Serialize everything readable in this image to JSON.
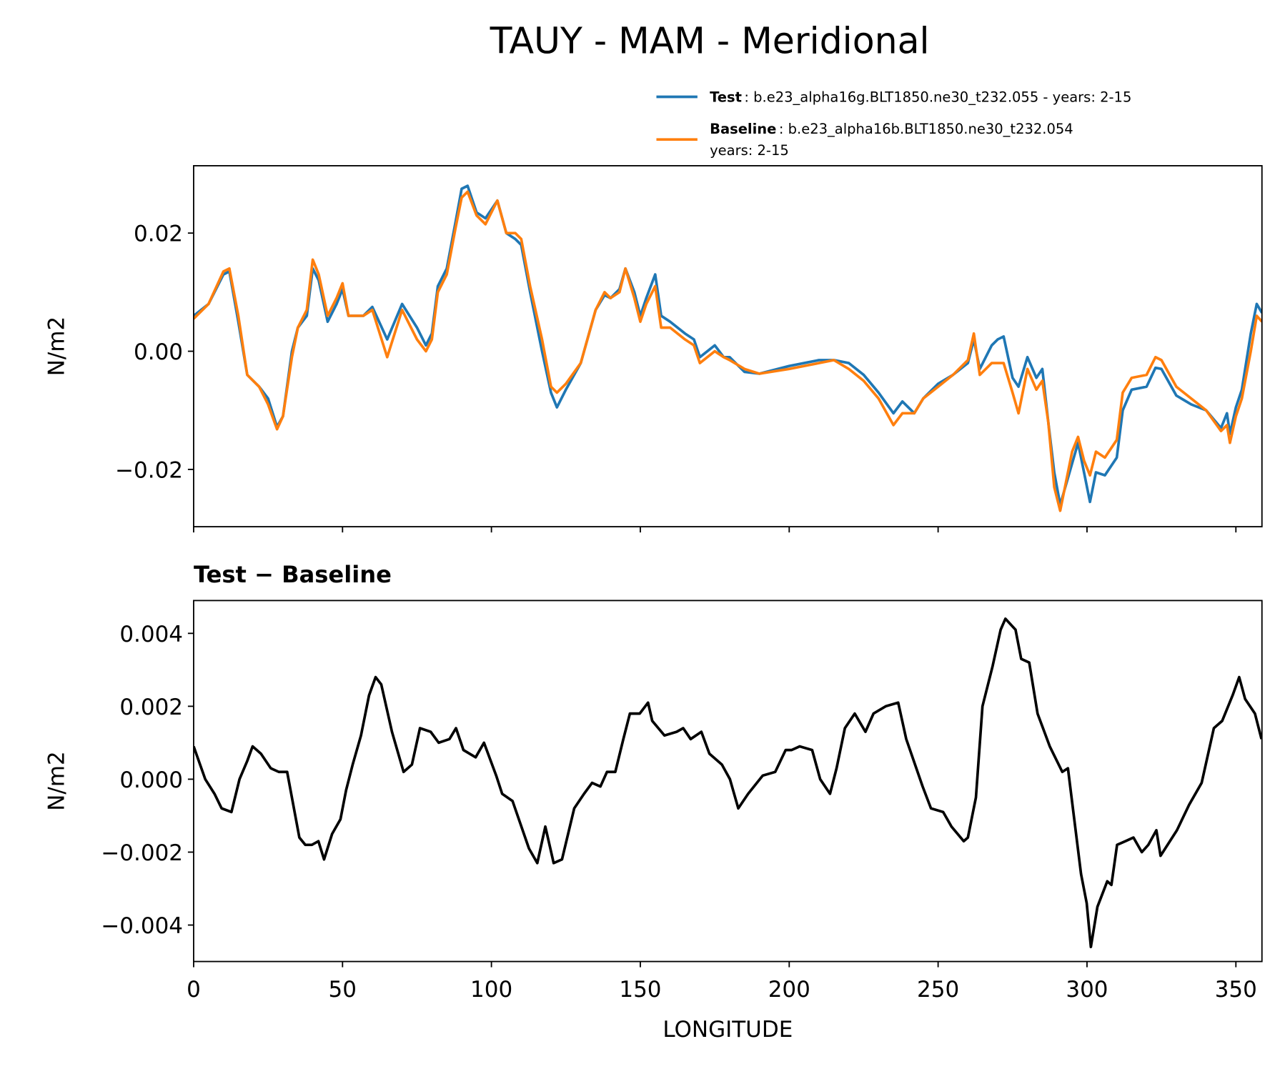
{
  "chart_data": [
    {
      "type": "line",
      "title": "TAUY - MAM - Meridional",
      "y_label": "N/m2",
      "x": [
        0,
        5,
        10,
        12,
        15,
        18,
        22,
        25,
        28,
        30,
        33,
        35,
        38,
        40,
        42,
        45,
        48,
        50,
        52,
        57,
        60,
        65,
        70,
        75,
        78,
        80,
        82,
        85,
        88,
        90,
        92,
        95,
        98,
        102,
        105,
        108,
        110,
        113,
        117,
        120,
        122,
        125,
        130,
        135,
        138,
        140,
        143,
        145,
        148,
        150,
        152,
        155,
        157,
        160,
        165,
        168,
        170,
        175,
        178,
        180,
        185,
        190,
        200,
        205,
        210,
        215,
        220,
        225,
        230,
        235,
        238,
        242,
        245,
        250,
        255,
        260,
        262,
        264,
        268,
        270,
        272,
        275,
        277,
        280,
        283,
        285,
        287,
        289,
        291,
        295,
        297,
        299,
        301,
        303,
        306,
        310,
        312,
        315,
        320,
        323,
        325,
        330,
        335,
        340,
        345,
        347,
        348,
        350,
        352,
        355,
        357,
        358.75
      ],
      "series": [
        {
          "name": "Test",
          "description": [
            ": b.e23_alpha16g.BLT1850.ne30_t232.055 - years: 2-15"
          ],
          "color": "#1f77b4",
          "values": [
            0.006,
            0.008,
            0.013,
            0.0135,
            0.005,
            -0.004,
            -0.006,
            -0.008,
            -0.0128,
            -0.011,
            0.0,
            0.004,
            0.006,
            0.014,
            0.012,
            0.005,
            0.008,
            0.0105,
            0.006,
            0.006,
            0.0075,
            0.002,
            0.008,
            0.004,
            0.001,
            0.003,
            0.011,
            0.014,
            0.022,
            0.0275,
            0.028,
            0.0235,
            0.0225,
            0.0255,
            0.02,
            0.019,
            0.018,
            0.01,
            0.0,
            -0.007,
            -0.0095,
            -0.0065,
            -0.002,
            0.007,
            0.0095,
            0.009,
            0.0105,
            0.014,
            0.01,
            0.006,
            0.009,
            0.013,
            0.006,
            0.005,
            0.003,
            0.002,
            -0.001,
            0.001,
            -0.001,
            -0.001,
            -0.0035,
            -0.0038,
            -0.0025,
            -0.002,
            -0.0015,
            -0.0015,
            -0.002,
            -0.004,
            -0.007,
            -0.0105,
            -0.0085,
            -0.0105,
            -0.008,
            -0.0055,
            -0.004,
            -0.002,
            0.002,
            -0.003,
            0.001,
            0.002,
            0.0025,
            -0.0045,
            -0.006,
            -0.001,
            -0.0045,
            -0.003,
            -0.012,
            -0.0205,
            -0.026,
            -0.019,
            -0.0155,
            -0.0205,
            -0.0255,
            -0.0205,
            -0.021,
            -0.018,
            -0.01,
            -0.0065,
            -0.006,
            -0.0028,
            -0.003,
            -0.0075,
            -0.009,
            -0.01,
            -0.013,
            -0.0105,
            -0.014,
            -0.0095,
            -0.0065,
            0.003,
            0.008,
            0.0065
          ]
        },
        {
          "name": "Baseline",
          "description": [
            ": b.e23_alpha16b.BLT1850.ne30_t232.054",
            "years: 2-15"
          ],
          "color": "#ff7f0e",
          "values": [
            0.0055,
            0.008,
            0.0135,
            0.014,
            0.006,
            -0.004,
            -0.006,
            -0.009,
            -0.0132,
            -0.011,
            -0.001,
            0.004,
            0.007,
            0.0155,
            0.013,
            0.006,
            0.009,
            0.0115,
            0.006,
            0.006,
            0.007,
            -0.001,
            0.007,
            0.002,
            0.0,
            0.002,
            0.01,
            0.013,
            0.021,
            0.026,
            0.027,
            0.023,
            0.0215,
            0.0255,
            0.02,
            0.02,
            0.019,
            0.011,
            0.002,
            -0.006,
            -0.007,
            -0.0055,
            -0.002,
            0.007,
            0.01,
            0.009,
            0.01,
            0.014,
            0.009,
            0.005,
            0.008,
            0.011,
            0.004,
            0.004,
            0.002,
            0.001,
            -0.002,
            0.0,
            -0.001,
            -0.0015,
            -0.003,
            -0.0038,
            -0.003,
            -0.0025,
            -0.002,
            -0.0015,
            -0.003,
            -0.005,
            -0.008,
            -0.0125,
            -0.0105,
            -0.0105,
            -0.008,
            -0.006,
            -0.004,
            -0.0015,
            0.003,
            -0.004,
            -0.002,
            -0.002,
            -0.002,
            -0.007,
            -0.0105,
            -0.003,
            -0.0065,
            -0.005,
            -0.012,
            -0.023,
            -0.027,
            -0.017,
            -0.0145,
            -0.0185,
            -0.021,
            -0.017,
            -0.018,
            -0.015,
            -0.007,
            -0.0045,
            -0.004,
            -0.001,
            -0.0015,
            -0.006,
            -0.008,
            -0.01,
            -0.0135,
            -0.0125,
            -0.0155,
            -0.011,
            -0.008,
            0.0,
            0.006,
            0.005
          ]
        }
      ],
      "xlim": [
        0,
        358.75
      ],
      "xticks": [
        0,
        50,
        100,
        150,
        200,
        250,
        300,
        350
      ],
      "xticklabels": false,
      "ylim": [
        -0.0297,
        0.0314
      ],
      "yticks": [
        {
          "value": -0.02,
          "label": "−0.02"
        },
        {
          "value": 0,
          "label": "0.00"
        },
        {
          "value": 0.02,
          "label": "0.02"
        }
      ],
      "grid": false,
      "legend": "upper right"
    },
    {
      "type": "line",
      "title": "Test − Baseline",
      "y_label": "N/m2",
      "x_label": "LONGITUDE",
      "x": [
        0,
        3.9,
        7,
        9.4,
        12.7,
        15.4,
        18,
        19.8,
        22.6,
        25.9,
        28.6,
        31.4,
        35.5,
        37.5,
        39.7,
        41.9,
        43.8,
        46.5,
        49.3,
        51.2,
        53.4,
        56.2,
        58.9,
        61.1,
        63,
        66.6,
        70.5,
        73.3,
        76,
        79.6,
        82.3,
        85.9,
        88.1,
        90.6,
        94.7,
        97.5,
        101.6,
        103.6,
        107.1,
        112.6,
        115.4,
        118.1,
        120.9,
        123.7,
        127.8,
        131.1,
        133.8,
        136.6,
        138.8,
        141.6,
        144.3,
        146.5,
        149.8,
        152.6,
        154,
        158.1,
        162.2,
        164.4,
        166.9,
        170.5,
        173.2,
        177.4,
        180.1,
        182.9,
        186.2,
        191.1,
        195.3,
        198.8,
        200.8,
        203.5,
        207.7,
        210.4,
        213.7,
        215.9,
        218.7,
        222,
        225.6,
        228.3,
        232.4,
        236.6,
        239.3,
        244.8,
        247.6,
        251.7,
        254.5,
        258.6,
        260,
        262.7,
        264.9,
        268.3,
        271,
        272.6,
        276,
        277.9,
        280.6,
        283.4,
        287.5,
        291.7,
        293.6,
        298,
        299.9,
        301.3,
        303.5,
        306.8,
        308.2,
        310.1,
        312.9,
        315.6,
        318.4,
        320.6,
        323.3,
        324.7,
        330.2,
        334.3,
        338.5,
        342.6,
        345.4,
        348.9,
        351.1,
        353.1,
        356.4,
        358.6
      ],
      "series": [
        {
          "name": "Test − Baseline",
          "color": "#000000",
          "values": [
            0.0009,
            0.0,
            -0.0004,
            -0.0008,
            -0.0009,
            0.0,
            0.0005,
            0.0009,
            0.0007,
            0.0003,
            0.0002,
            0.0002,
            -0.0016,
            -0.0018,
            -0.0018,
            -0.0017,
            -0.0022,
            -0.0015,
            -0.0011,
            -0.0003,
            0.0004,
            0.0012,
            0.0023,
            0.0028,
            0.0026,
            0.0013,
            0.0002,
            0.0004,
            0.0014,
            0.0013,
            0.001,
            0.0011,
            0.0014,
            0.0008,
            0.0006,
            0.001,
            0.0001,
            -0.0004,
            -0.0006,
            -0.0019,
            -0.0023,
            -0.0013,
            -0.0023,
            -0.0022,
            -0.0008,
            -0.0004,
            -0.0001,
            -0.0002,
            0.0002,
            0.0002,
            0.0011,
            0.0018,
            0.0018,
            0.0021,
            0.0016,
            0.0012,
            0.0013,
            0.0014,
            0.0011,
            0.0013,
            0.0007,
            0.0004,
            0.0,
            -0.0008,
            -0.0004,
            0.0001,
            0.0002,
            0.0008,
            0.0008,
            0.0009,
            0.0008,
            0.0,
            -0.0004,
            0.0003,
            0.0014,
            0.0018,
            0.0013,
            0.0018,
            0.002,
            0.0021,
            0.0011,
            -0.0002,
            -0.0008,
            -0.0009,
            -0.0013,
            -0.0017,
            -0.0016,
            -0.0005,
            0.002,
            0.0031,
            0.0041,
            0.0044,
            0.0041,
            0.0033,
            0.0032,
            0.0018,
            0.0009,
            0.0002,
            0.0003,
            -0.0026,
            -0.0034,
            -0.0046,
            -0.0035,
            -0.0028,
            -0.0029,
            -0.0018,
            -0.0017,
            -0.0016,
            -0.002,
            -0.0018,
            -0.0014,
            -0.0021,
            -0.0014,
            -0.0007,
            -0.0001,
            0.0014,
            0.0016,
            0.0023,
            0.0028,
            0.0022,
            0.0018,
            0.0011
          ]
        }
      ],
      "xlim": [
        0,
        358.75
      ],
      "xticks": [
        0,
        50,
        100,
        150,
        200,
        250,
        300,
        350
      ],
      "xticklabels": true,
      "ylim": [
        -0.005,
        0.0049
      ],
      "yticks": [
        {
          "value": -0.004,
          "label": "−0.004"
        },
        {
          "value": -0.002,
          "label": "−0.002"
        },
        {
          "value": 0,
          "label": "0.000"
        },
        0.002,
        0.004
      ],
      "grid": false
    }
  ]
}
